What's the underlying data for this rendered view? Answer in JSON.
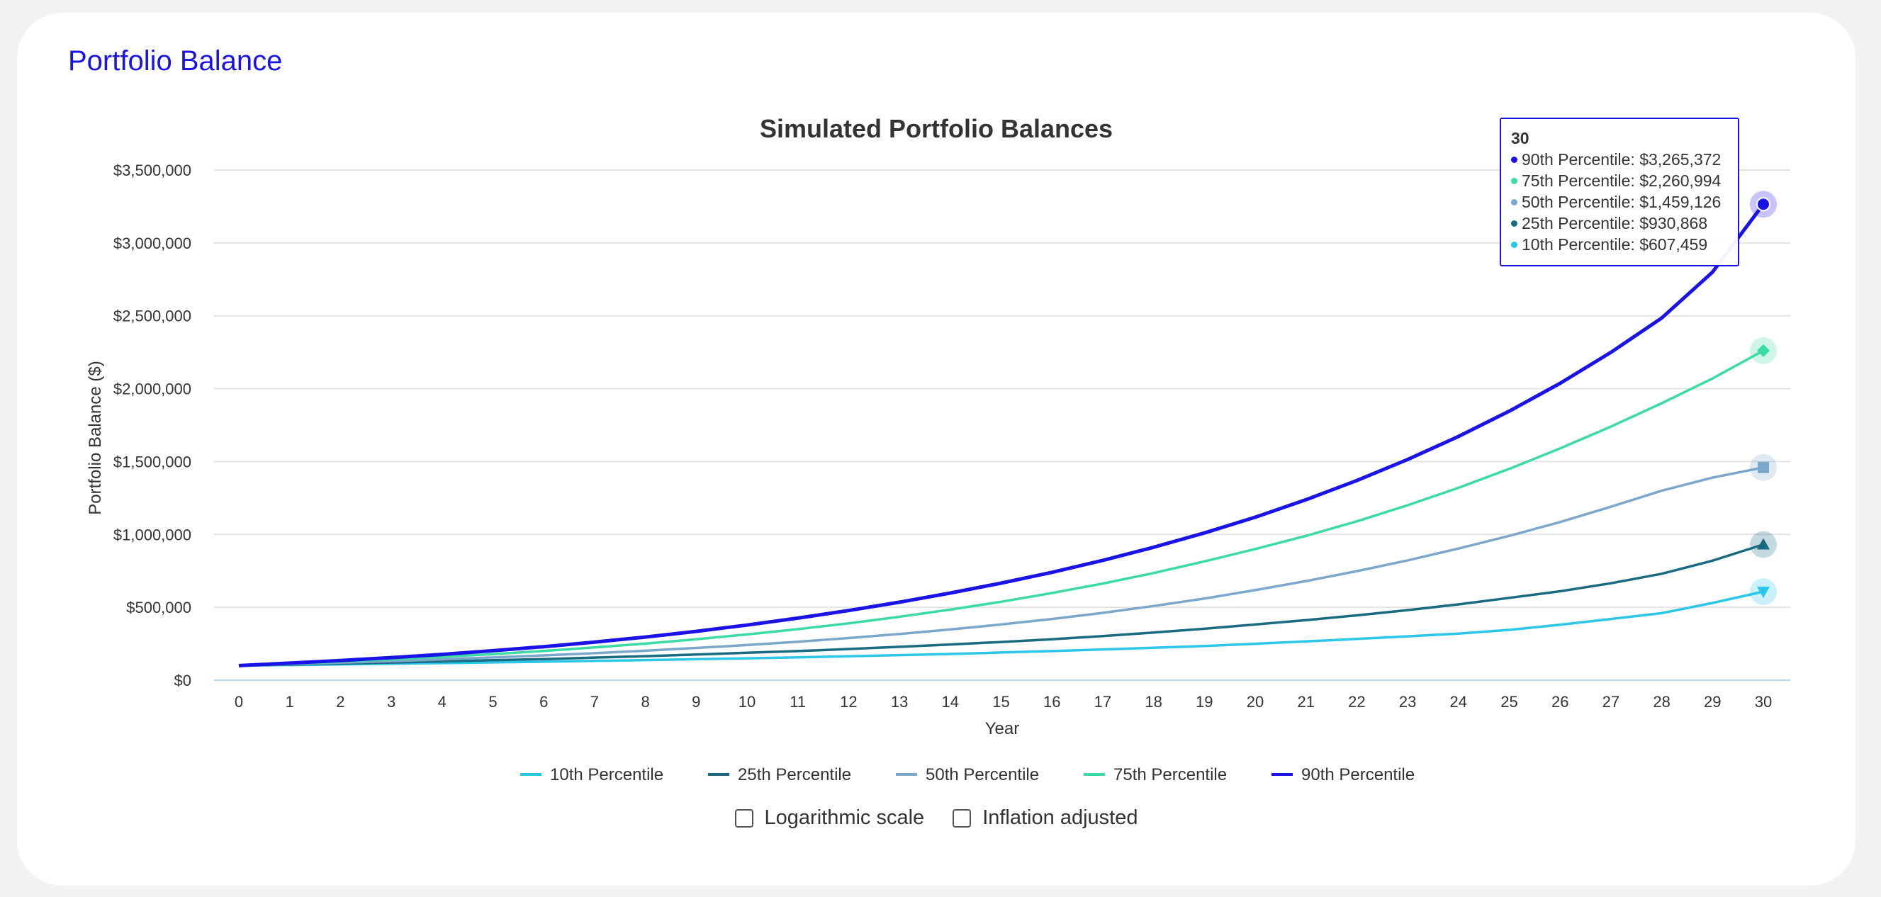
{
  "card": {
    "title": "Portfolio Balance"
  },
  "chart_data": {
    "type": "line",
    "title": "Simulated Portfolio Balances",
    "xlabel": "Year",
    "ylabel": "Portfolio Balance ($)",
    "x": [
      0,
      1,
      2,
      3,
      4,
      5,
      6,
      7,
      8,
      9,
      10,
      11,
      12,
      13,
      14,
      15,
      16,
      17,
      18,
      19,
      20,
      21,
      22,
      23,
      24,
      25,
      26,
      27,
      28,
      29,
      30
    ],
    "ylim": [
      0,
      3500000
    ],
    "yticks": [
      0,
      500000,
      1000000,
      1500000,
      2000000,
      2500000,
      3000000,
      3500000
    ],
    "ytick_labels": [
      "$0",
      "$500,000",
      "$1,000,000",
      "$1,500,000",
      "$2,000,000",
      "$2,500,000",
      "$3,000,000",
      "$3,500,000"
    ],
    "grid": true,
    "legend_position": "bottom",
    "series": [
      {
        "name": "10th Percentile",
        "color": "#2cc6e8",
        "marker": "triangle-down",
        "values": [
          100000,
          104000,
          108000,
          113000,
          117000,
          122000,
          127000,
          132000,
          138000,
          144000,
          150000,
          157000,
          164000,
          172000,
          180000,
          190000,
          200000,
          211000,
          222000,
          235000,
          250000,
          266000,
          283000,
          301000,
          320000,
          345000,
          380000,
          420000,
          460000,
          530000,
          607459
        ]
      },
      {
        "name": "25th Percentile",
        "color": "#196b82",
        "marker": "triangle",
        "values": [
          100000,
          107000,
          114000,
          121000,
          129000,
          137000,
          145000,
          155000,
          165000,
          176000,
          188000,
          200000,
          214000,
          229000,
          245000,
          262000,
          281000,
          303000,
          327000,
          353000,
          382000,
          412000,
          445000,
          481000,
          520000,
          565000,
          610000,
          665000,
          730000,
          820000,
          930868
        ]
      },
      {
        "name": "50th Percentile",
        "color": "#7ca7cc",
        "marker": "square",
        "values": [
          100000,
          110000,
          120000,
          131000,
          143000,
          156000,
          170000,
          185000,
          202000,
          221000,
          241000,
          264000,
          289000,
          317000,
          348000,
          382000,
          420000,
          462000,
          509000,
          560000,
          618000,
          680000,
          748000,
          822000,
          903000,
          990000,
          1085000,
          1190000,
          1300000,
          1390000,
          1459126
        ]
      },
      {
        "name": "75th Percentile",
        "color": "#3bdba4",
        "marker": "diamond",
        "values": [
          100000,
          113000,
          127000,
          143000,
          160000,
          179000,
          201000,
          225000,
          251000,
          281000,
          314000,
          350000,
          390000,
          435000,
          484000,
          538000,
          598000,
          663000,
          735000,
          815000,
          900000,
          990000,
          1090000,
          1200000,
          1320000,
          1450000,
          1590000,
          1740000,
          1900000,
          2070000,
          2260994
        ]
      },
      {
        "name": "90th Percentile",
        "color": "#1a13e8",
        "marker": "circle",
        "values": [
          100000,
          117000,
          135000,
          155000,
          177000,
          202000,
          230000,
          261000,
          296000,
          335000,
          378000,
          426000,
          478000,
          535000,
          598000,
          666000,
          740000,
          822000,
          912000,
          1010000,
          1118000,
          1238000,
          1370000,
          1514000,
          1672000,
          1846000,
          2037000,
          2249000,
          2485000,
          2800000,
          3265372
        ]
      }
    ]
  },
  "tooltip": {
    "header": "30",
    "rows": [
      {
        "label": "90th Percentile: $3,265,372",
        "color": "#1a13e8"
      },
      {
        "label": "75th Percentile: $2,260,994",
        "color": "#3bdba4"
      },
      {
        "label": "50th Percentile: $1,459,126",
        "color": "#7ca7cc"
      },
      {
        "label": "25th Percentile: $930,868",
        "color": "#196b82"
      },
      {
        "label": "10th Percentile: $607,459",
        "color": "#2cc6e8"
      }
    ]
  },
  "controls": {
    "log_scale_label": "Logarithmic scale",
    "inflation_label": "Inflation adjusted",
    "log_scale_checked": false,
    "inflation_checked": false
  }
}
